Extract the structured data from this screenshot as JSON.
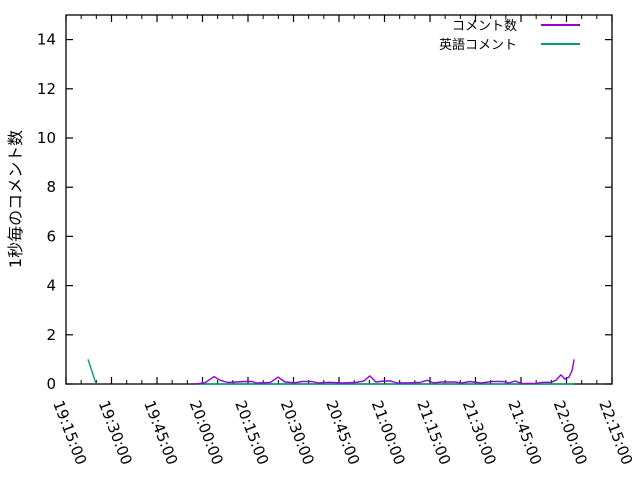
{
  "chart_data": {
    "type": "line",
    "title": "",
    "ylabel": "1秒毎のコメント数",
    "xlabel": "",
    "ylim": [
      0,
      15
    ],
    "yticks": [
      0,
      2,
      4,
      6,
      8,
      10,
      12,
      14
    ],
    "xtick_labels": [
      "19:15:00",
      "19:30:00",
      "19:45:00",
      "20:00:00",
      "20:15:00",
      "20:30:00",
      "20:45:00",
      "21:00:00",
      "21:15:00",
      "21:30:00",
      "21:45:00",
      "22:00:00",
      "22:15:00"
    ],
    "x_range": [
      "19:15:00",
      "22:15:00"
    ],
    "x_minor_interval_seconds": 300,
    "grid": false,
    "legend_position": "top-right-inside",
    "colors": {
      "background": "#ffffff",
      "axis": "#000000",
      "text": "#000000"
    },
    "series": [
      {
        "key": "comments",
        "name": "コメント数",
        "color": "#9400d3",
        "segments": [
          [
            [
              "19:57:30",
              0.0
            ],
            [
              "20:00:50",
              0.05
            ],
            [
              "20:03:50",
              0.3
            ],
            [
              "20:05:50",
              0.15
            ],
            [
              "20:08:25",
              0.06
            ],
            [
              "20:14:00",
              0.1
            ],
            [
              "20:16:20",
              0.1
            ],
            [
              "20:17:35",
              0.04
            ],
            [
              "20:22:20",
              0.06
            ],
            [
              "20:24:55",
              0.28
            ],
            [
              "20:27:10",
              0.08
            ],
            [
              "20:30:30",
              0.05
            ],
            [
              "20:32:50",
              0.1
            ],
            [
              "20:36:05",
              0.1
            ],
            [
              "20:38:05",
              0.04
            ],
            [
              "20:42:00",
              0.07
            ],
            [
              "20:46:00",
              0.04
            ],
            [
              "20:50:20",
              0.06
            ],
            [
              "20:53:10",
              0.12
            ],
            [
              "20:55:10",
              0.33
            ],
            [
              "20:57:10",
              0.08
            ],
            [
              "20:59:50",
              0.12
            ],
            [
              "21:02:05",
              0.12
            ],
            [
              "21:04:05",
              0.04
            ],
            [
              "21:08:25",
              0.05
            ],
            [
              "21:11:40",
              0.06
            ],
            [
              "21:14:00",
              0.15
            ],
            [
              "21:16:20",
              0.04
            ],
            [
              "21:18:35",
              0.08
            ],
            [
              "21:23:10",
              0.08
            ],
            [
              "21:25:30",
              0.04
            ],
            [
              "21:28:10",
              0.1
            ],
            [
              "21:31:50",
              0.04
            ],
            [
              "21:35:25",
              0.1
            ],
            [
              "21:39:05",
              0.1
            ],
            [
              "21:41:00",
              0.04
            ],
            [
              "21:43:00",
              0.12
            ],
            [
              "21:45:20",
              0.02
            ],
            [
              "21:50:00",
              0.03
            ],
            [
              "21:52:20",
              0.07
            ],
            [
              "21:54:55",
              0.07
            ],
            [
              "21:56:30",
              0.15
            ],
            [
              "21:58:10",
              0.37
            ],
            [
              "21:59:30",
              0.2
            ],
            [
              "22:00:50",
              0.28
            ],
            [
              "22:01:50",
              0.55
            ],
            [
              "22:02:30",
              1.0
            ]
          ]
        ]
      },
      {
        "key": "english-comments",
        "name": "英語コメント",
        "color": "#009e73",
        "segments": [
          [
            [
              "19:22:15",
              1.0
            ],
            [
              "19:24:55",
              0.0
            ]
          ],
          [
            [
              "19:57:30",
              0.0
            ],
            [
              "22:02:30",
              0.0
            ]
          ]
        ]
      }
    ]
  }
}
